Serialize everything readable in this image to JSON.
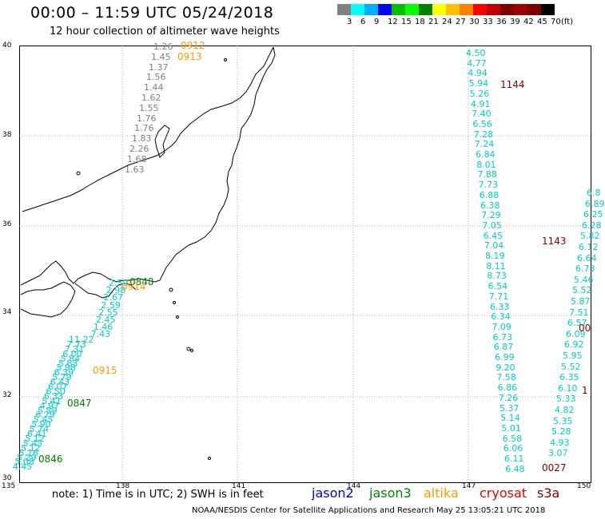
{
  "header": {
    "title": "00:00 – 11:59 UTC 05/24/2018",
    "subtitle": "12 hour collection of altimeter wave heights"
  },
  "colorbar": {
    "unit": "(ft)",
    "labels": [
      "3",
      "6",
      "9",
      "12",
      "15",
      "18",
      "21",
      "24",
      "27",
      "30",
      "33",
      "36",
      "39",
      "42",
      "45",
      "70"
    ],
    "colors": [
      "#808080",
      "#00ffff",
      "#00b0ff",
      "#0000ff",
      "#00c000",
      "#00ff00",
      "#008000",
      "#ffff00",
      "#ffc000",
      "#ff8000",
      "#ff0000",
      "#c00000",
      "#800000",
      "#a00000",
      "#800000",
      "#000000"
    ]
  },
  "map": {
    "lat_labels": [
      "40",
      "38",
      "36",
      "34",
      "32",
      "30"
    ],
    "lon_labels": [
      "135",
      "138",
      "141",
      "144",
      "147",
      "150"
    ]
  },
  "time_labels": [
    {
      "text": "0912",
      "color": "#ff9900"
    },
    {
      "text": "0913",
      "color": "#ff9900"
    },
    {
      "text": "1144",
      "color": "#800000"
    },
    {
      "text": "1143",
      "color": "#800000"
    },
    {
      "text": "0848",
      "color": "#008000"
    },
    {
      "text": "0914",
      "color": "#ff9900"
    },
    {
      "text": "0915",
      "color": "#ff9900"
    },
    {
      "text": "0847",
      "color": "#008000"
    },
    {
      "text": "0846",
      "color": "#008000"
    },
    {
      "text": "0027",
      "color": "#800000"
    },
    {
      "text": "00",
      "color": "#800000"
    },
    {
      "text": "1",
      "color": "#800000"
    }
  ],
  "tracks": {
    "altika_north": [
      "1.26",
      "1.45",
      "1.37",
      "1.56",
      "1.44",
      "1.62",
      "1.55",
      "1.76",
      "1.76",
      "1.83",
      "2.26",
      "1.68",
      "1.63"
    ],
    "altika_south": [
      "2.59",
      "2.98",
      "2.67",
      "2.59",
      "2.55",
      "2.45",
      "1.46",
      "7.43"
    ],
    "jason3_west": [
      "11.22",
      "7.73",
      "7.31",
      "6.00",
      "5.84",
      "5.63",
      "5.98",
      "6.39",
      "5.79",
      "6.43",
      "6.07",
      "6.50",
      "6.33",
      "5.41",
      "4.97",
      "5.59",
      "6.79",
      "5.45",
      "5.90",
      "5.74",
      "6.41",
      "5.12",
      "5.45",
      "5.12",
      "5.16",
      "5.29",
      "5.08",
      "4.45"
    ],
    "s3a_east_a": [
      "4.50",
      "4.77",
      "4.94",
      "5.94",
      "5.26",
      "4.91",
      "7.40",
      "6.56",
      "7.28",
      "7.24",
      "6.84",
      "8.01",
      "7.88",
      "7.73",
      "6.88",
      "6.38",
      "7.29",
      "7.05",
      "6.45",
      "7.04",
      "8.19",
      "8.11",
      "8.73",
      "6.54",
      "7.71",
      "6.33",
      "6.34",
      "7.09",
      "6.73",
      "6.87",
      "6.99",
      "9.20",
      "7.58",
      "6.86",
      "7.26",
      "5.37",
      "5.14",
      "5.01",
      "6.58",
      "6.06",
      "6.11",
      "6.48"
    ],
    "s3a_east_b": [
      "6.8",
      "6.89",
      "6.25",
      "6.28",
      "5.82",
      "6.12",
      "6.64",
      "6.73",
      "5.46",
      "5.52",
      "5.87",
      "7.51",
      "6.57",
      "6.09",
      "6.92",
      "5.95",
      "5.52",
      "6.35",
      "6.10",
      "5.33",
      "4.82",
      "5.35",
      "5.28",
      "4.93",
      "3.07"
    ]
  },
  "footer": {
    "note": "note: 1) Time is in UTC; 2) SWH is in feet",
    "satellites": [
      {
        "name": "jason2",
        "color": "#0000cc"
      },
      {
        "name": "jason3",
        "color": "#008000"
      },
      {
        "name": "altika",
        "color": "#ff9900"
      },
      {
        "name": "cryosat",
        "color": "#e00000"
      },
      {
        "name": "s3a",
        "color": "#800000"
      }
    ],
    "credit": "NOAA/NESDIS Center for Satellite Applications and Research     May 25 13:05:21 UTC 2018"
  }
}
